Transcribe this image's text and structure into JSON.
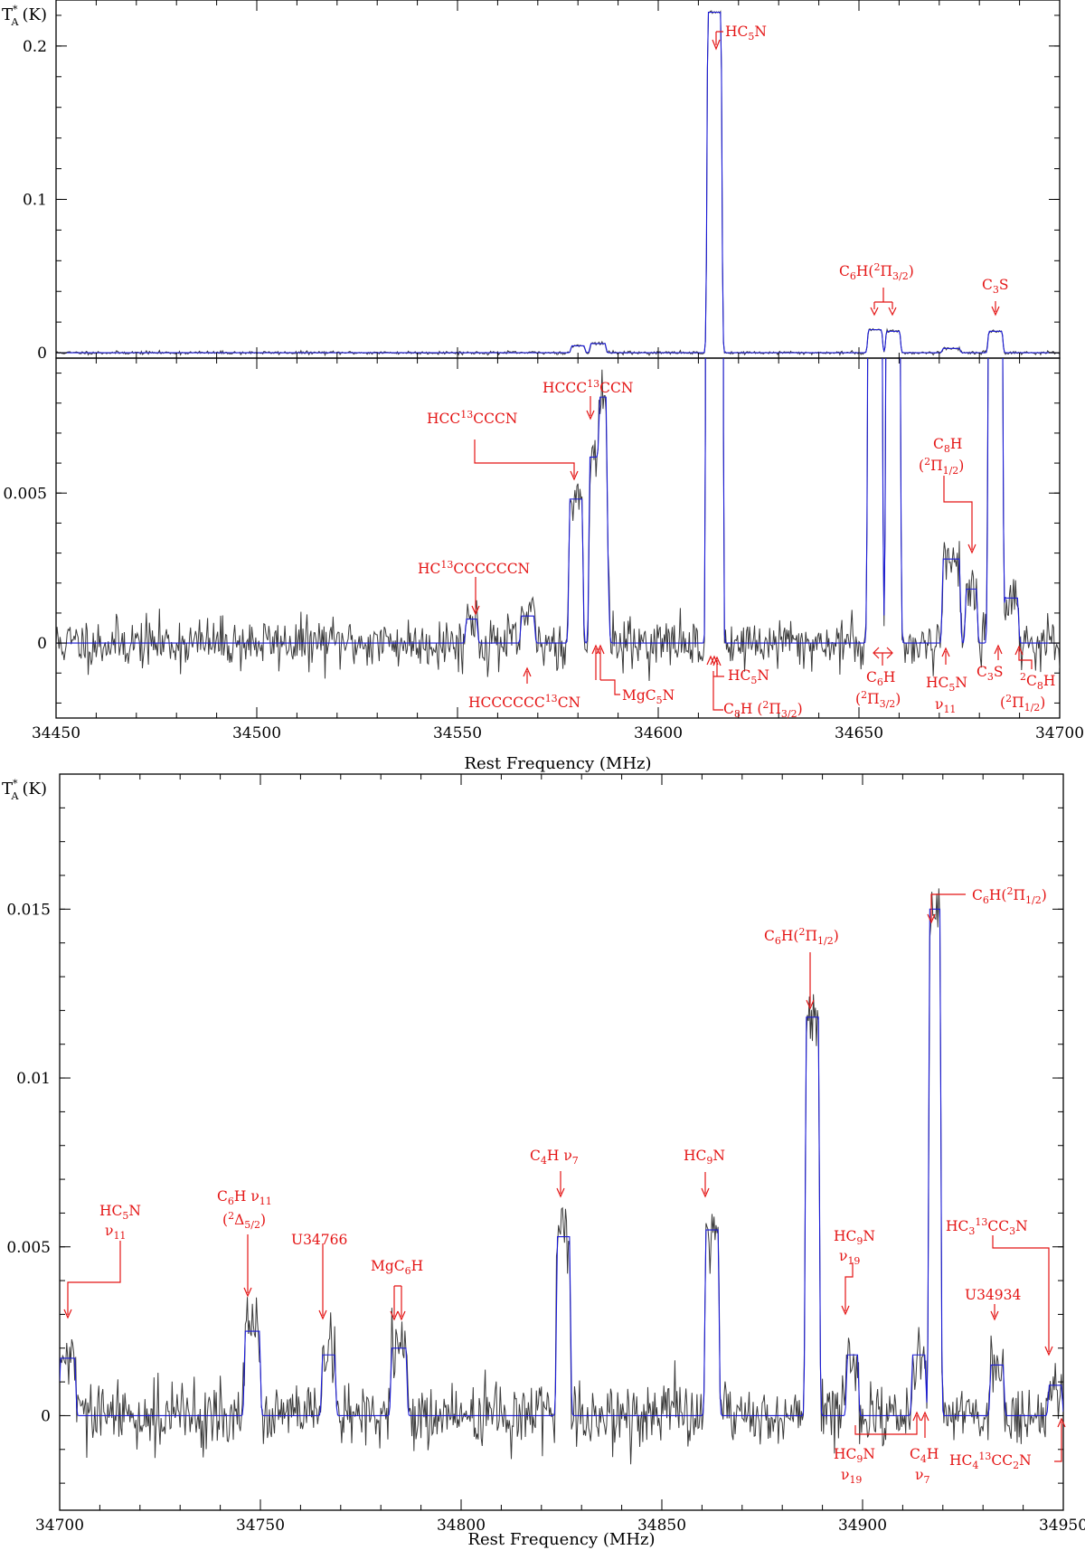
{
  "chart_data": [
    {
      "type": "line",
      "panel": "top-upper",
      "title": "",
      "xlabel": "",
      "ylabel": "T*A (K)",
      "xlim": [
        34450,
        34700
      ],
      "ylim": [
        -0.0035,
        0.23
      ],
      "x_ticks": [
        34450,
        34500,
        34550,
        34600,
        34650,
        34700
      ],
      "x_tick_labels": [
        "",
        "",
        "",
        "",
        "",
        ""
      ],
      "y_ticks": [
        0,
        0.1,
        0.2
      ],
      "y_tick_labels": [
        "0",
        "0.1",
        "0.2"
      ],
      "grid": false,
      "series": [
        {
          "role": "observed",
          "color": "#3a3a3a"
        },
        {
          "role": "model",
          "color": "#1a1ad8"
        }
      ],
      "features": [
        {
          "center": 34580,
          "width": 3.0,
          "peak": 0.0045
        },
        {
          "center": 34585,
          "width": 3.5,
          "peak": 0.006
        },
        {
          "center": 34614,
          "width": 3.2,
          "peak": 0.222
        },
        {
          "center": 34654,
          "width": 3.2,
          "peak": 0.015
        },
        {
          "center": 34658.5,
          "width": 3.2,
          "peak": 0.014
        },
        {
          "center": 34673,
          "width": 4.0,
          "peak": 0.0028
        },
        {
          "center": 34684,
          "width": 3.2,
          "peak": 0.014
        }
      ],
      "labels": [
        {
          "text": "HC₅N",
          "x": 34614
        },
        {
          "text": "C₆H(²Π₃/₂)",
          "x": 34656
        },
        {
          "text": "C₃S",
          "x": 34684
        }
      ]
    },
    {
      "type": "line",
      "panel": "top-lower",
      "title": "",
      "xlabel": "Rest Frequency (MHz)",
      "ylabel": "",
      "xlim": [
        34450,
        34700
      ],
      "ylim": [
        -0.0025,
        0.0095
      ],
      "x_ticks": [
        34450,
        34500,
        34550,
        34600,
        34650,
        34700
      ],
      "x_tick_labels": [
        "34450",
        "34500",
        "34550",
        "34600",
        "34650",
        "34700"
      ],
      "y_ticks": [
        0,
        0.005
      ],
      "y_tick_labels": [
        "0",
        "0.005"
      ],
      "grid": false,
      "features": [
        {
          "center": 34553.5,
          "width": 2.5,
          "peak": 0.0008
        },
        {
          "center": 34567.5,
          "width": 3.0,
          "peak": 0.0009
        },
        {
          "center": 34579.5,
          "width": 3.0,
          "peak": 0.0048
        },
        {
          "center": 34585,
          "width": 4.0,
          "peak": 0.0062
        },
        {
          "center": 34586.5,
          "width": 2.0,
          "peak": 0.002
        },
        {
          "center": 34614,
          "width": 3.2,
          "peak": 0.222
        },
        {
          "center": 34654,
          "width": 3.2,
          "peak": 0.015
        },
        {
          "center": 34658.5,
          "width": 3.2,
          "peak": 0.014
        },
        {
          "center": 34673,
          "width": 4.0,
          "peak": 0.0028
        },
        {
          "center": 34678,
          "width": 2.5,
          "peak": 0.0018
        },
        {
          "center": 34684,
          "width": 3.2,
          "peak": 0.014
        },
        {
          "center": 34688,
          "width": 3.0,
          "peak": 0.0015
        }
      ],
      "labels": [
        {
          "text": "HCC¹³CCCN",
          "x": 34579
        },
        {
          "text": "HCCC¹³CCN",
          "x": 34586
        },
        {
          "text": "HC¹³CCCCCCN",
          "x": 34553.5
        },
        {
          "text": "C₈H",
          "x": 34679
        },
        {
          "text": "(²Π₁/₂)",
          "x": 34679
        },
        {
          "text": "HCCCCCC¹³CN",
          "x": 34567.5
        },
        {
          "text": "MgC₅N",
          "x": 34585
        },
        {
          "text": "HC₅N",
          "x": 34614
        },
        {
          "text": "C₈H",
          "x": 34613
        },
        {
          "text": "(²Π₃/₂)",
          "x": 34613
        },
        {
          "text": "C₆H",
          "x": 34656
        },
        {
          "text": "(²Π₃/₂)",
          "x": 34656
        },
        {
          "text": "HC₅N",
          "x": 34671
        },
        {
          "text": "ν₁₁",
          "x": 34671
        },
        {
          "text": "C₃S",
          "x": 34684
        },
        {
          "text": "²C₈H",
          "x": 34689
        },
        {
          "text": "(²Π₁/₂)",
          "x": 34689
        }
      ]
    },
    {
      "type": "line",
      "panel": "bottom",
      "title": "",
      "xlabel": "Rest Frequency (MHz)",
      "ylabel": "T*A (K)",
      "xlim": [
        34700,
        34950
      ],
      "ylim": [
        -0.0028,
        0.019
      ],
      "x_ticks": [
        34700,
        34750,
        34800,
        34850,
        34900,
        34950
      ],
      "x_tick_labels": [
        "34700",
        "34750",
        "34800",
        "34850",
        "34900",
        "34950"
      ],
      "y_ticks": [
        0,
        0.005,
        0.01,
        0.015
      ],
      "y_tick_labels": [
        "0",
        "0.005",
        "0.01",
        "0.015"
      ],
      "grid": false,
      "features": [
        {
          "center": 34702,
          "width": 3.5,
          "peak": 0.0017
        },
        {
          "center": 34748,
          "width": 3.5,
          "peak": 0.0025
        },
        {
          "center": 34767,
          "width": 3.0,
          "peak": 0.0018
        },
        {
          "center": 34784.5,
          "width": 3.5,
          "peak": 0.002
        },
        {
          "center": 34825.5,
          "width": 3.0,
          "peak": 0.0053
        },
        {
          "center": 34862.5,
          "width": 3.0,
          "peak": 0.0055
        },
        {
          "center": 34887.5,
          "width": 3.0,
          "peak": 0.0118
        },
        {
          "center": 34897.5,
          "width": 2.5,
          "peak": 0.0018
        },
        {
          "center": 34914,
          "width": 3.0,
          "peak": 0.0018
        },
        {
          "center": 34918,
          "width": 2.5,
          "peak": 0.015
        },
        {
          "center": 34933.5,
          "width": 3.0,
          "peak": 0.0015
        },
        {
          "center": 34948,
          "width": 3.0,
          "peak": 0.0009
        }
      ],
      "labels": [
        {
          "text": "HC₅N",
          "x": 34702
        },
        {
          "text": "ν₁₁",
          "x": 34702
        },
        {
          "text": "C₆H  ν₁₁",
          "x": 34748
        },
        {
          "text": "(²Δ₅/₂)",
          "x": 34748
        },
        {
          "text": "U34766",
          "x": 34767
        },
        {
          "text": "MgC₆H",
          "x": 34785
        },
        {
          "text": "C₄H  ν₇",
          "x": 34825.5
        },
        {
          "text": "HC₉N",
          "x": 34862.5
        },
        {
          "text": "C₆H(²Π₁/₂)",
          "x": 34888
        },
        {
          "text": "C₆H(²Π₁/₂)",
          "x": 34918
        },
        {
          "text": "HC₉N",
          "x": 34897.5
        },
        {
          "text": "ν₁₉",
          "x": 34897.5
        },
        {
          "text": "HC₃¹³CC₃N",
          "x": 34945
        },
        {
          "text": "U34934",
          "x": 34934
        },
        {
          "text": "HC₉N",
          "x": 34914
        },
        {
          "text": "ν₁₉",
          "x": 34914
        },
        {
          "text": "C₄H",
          "x": 34918
        },
        {
          "text": "ν₇",
          "x": 34918
        },
        {
          "text": "HC₄¹³CC₂N",
          "x": 34950
        }
      ]
    }
  ]
}
